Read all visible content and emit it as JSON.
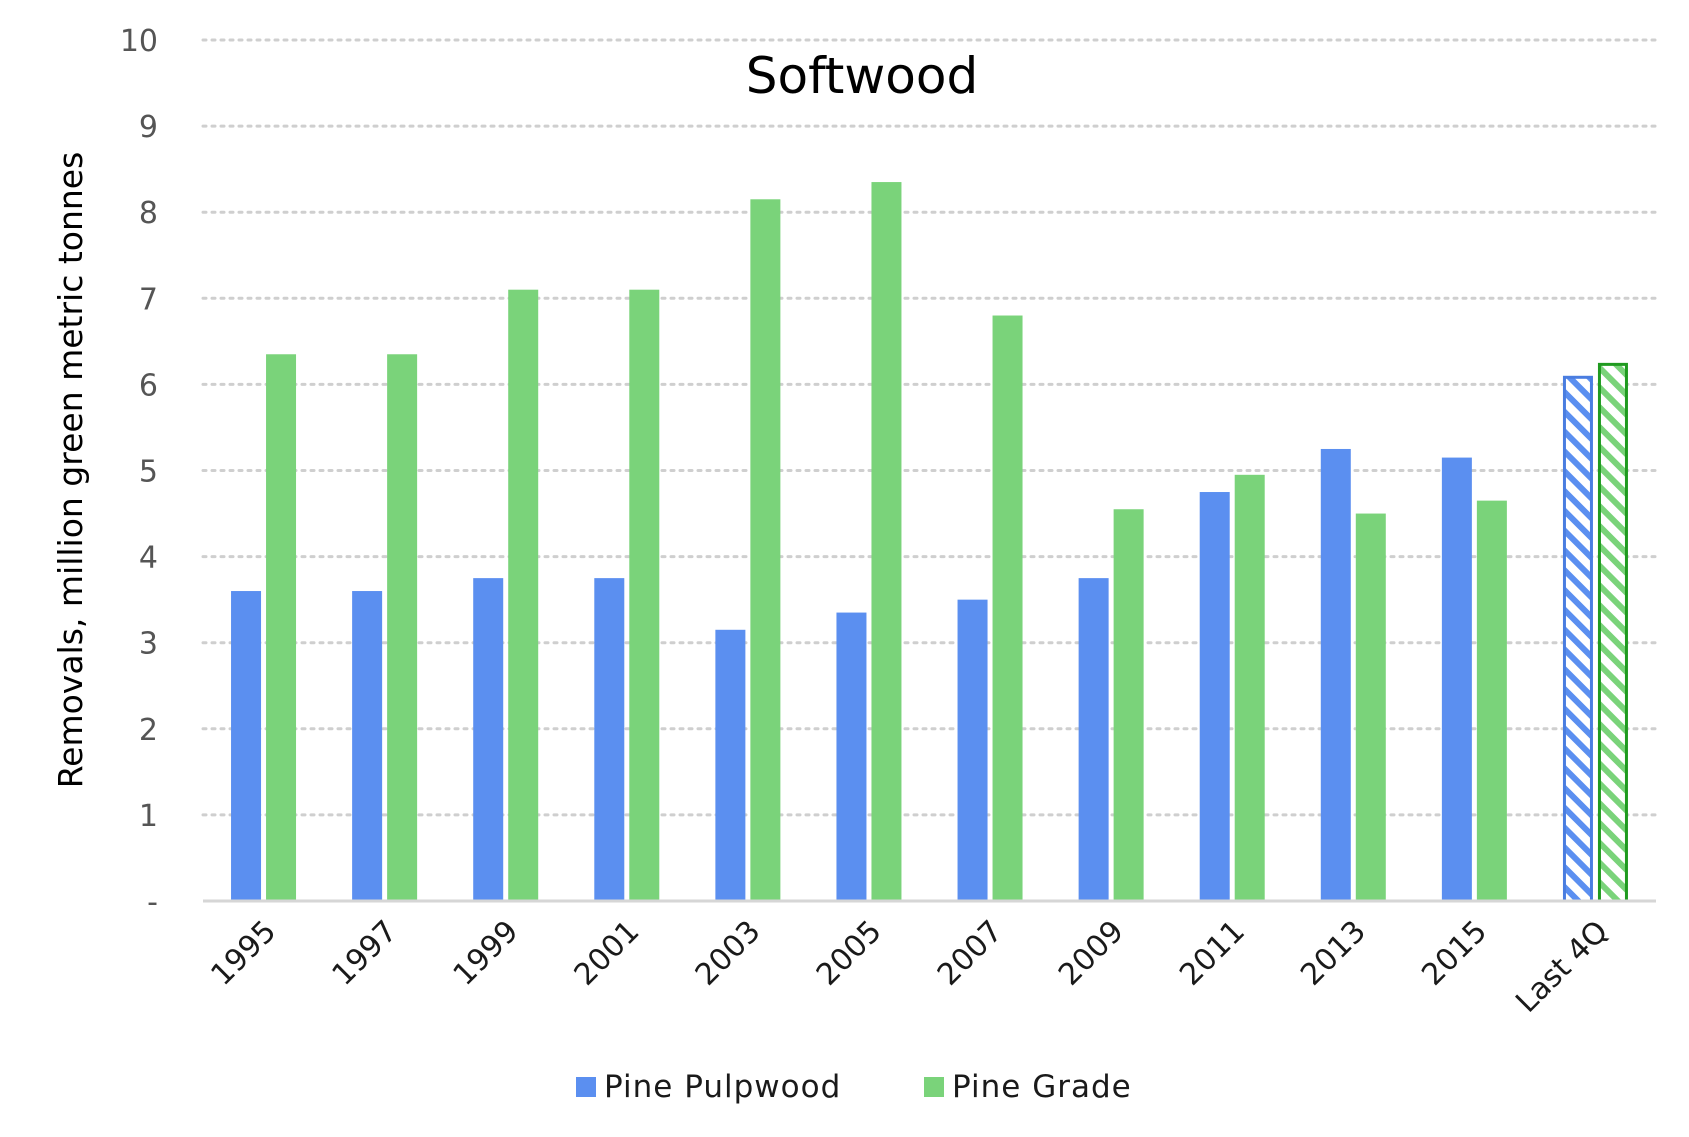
{
  "chart_data": {
    "type": "bar",
    "title": "Softwood",
    "xlabel": "",
    "ylabel": "Removals, million green metric tonnes",
    "ylim": [
      0,
      10
    ],
    "yticks": [
      "-",
      "1",
      "2",
      "3",
      "4",
      "5",
      "6",
      "7",
      "8",
      "9",
      "10"
    ],
    "grid": "horizontal dotted",
    "legend_position": "bottom-center",
    "categories": [
      "1995",
      "1997",
      "1999",
      "2001",
      "2003",
      "2005",
      "2007",
      "2009",
      "2011",
      "2013",
      "2015",
      "Last 4Q"
    ],
    "series": [
      {
        "name": "Pine Pulpwood",
        "color": "#5b8ff0",
        "values": [
          3.6,
          3.6,
          3.75,
          3.75,
          3.15,
          3.35,
          3.5,
          3.75,
          4.75,
          5.25,
          5.15,
          6.1
        ]
      },
      {
        "name": "Pine Grade",
        "color": "#7ad37a",
        "values": [
          6.35,
          6.35,
          7.1,
          7.1,
          8.15,
          8.35,
          6.8,
          4.55,
          4.95,
          4.5,
          4.65,
          6.25
        ]
      }
    ],
    "hatched_categories": [
      "Last 4Q"
    ],
    "hatched_outline_colors": [
      "#4a7de0",
      "#1f9a1f"
    ]
  }
}
